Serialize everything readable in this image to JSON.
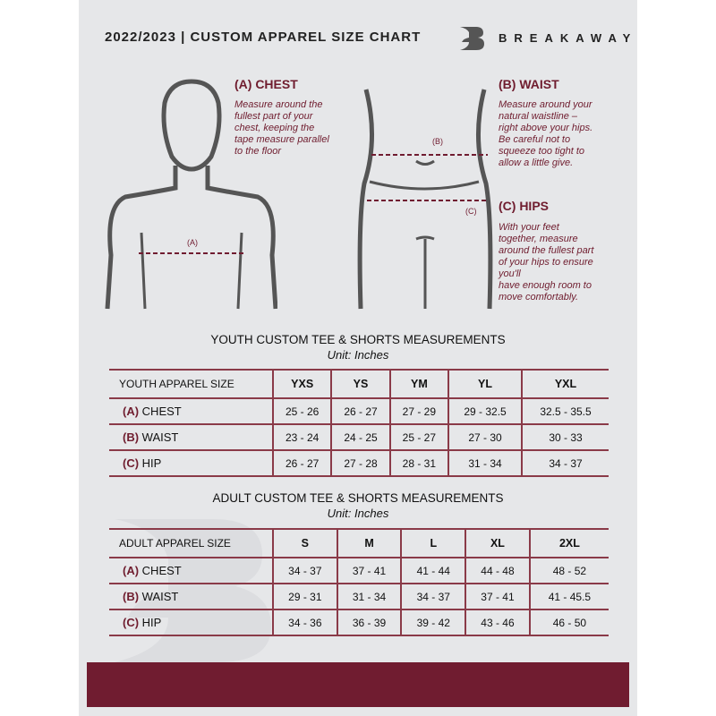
{
  "header": {
    "title": "2022/2023  |  CUSTOM APPAREL SIZE CHART",
    "brand": "BREAKAWAY"
  },
  "guides": {
    "chest": {
      "heading": "(A) CHEST",
      "lines": [
        "Measure around the",
        "fullest part of your",
        "chest, keeping the",
        "tape measure parallel",
        "to the floor"
      ],
      "marker": "(A)"
    },
    "waist": {
      "heading": "(B) WAIST",
      "lines": [
        "Measure around your",
        "natural waistline –",
        "right above your hips.",
        "Be careful not to",
        "squeeze too tight to",
        "allow a little give."
      ],
      "marker": "(B)"
    },
    "hips": {
      "heading": "(C) HIPS",
      "lines": [
        "With your feet",
        "together, measure",
        "around the fullest part",
        "of your hips to ensure",
        "you'll",
        "have enough room to",
        "move comfortably."
      ],
      "marker": "(C)"
    }
  },
  "youth": {
    "title": "YOUTH CUSTOM TEE & SHORTS MEASUREMENTS",
    "unit": "Unit: Inches",
    "size_label": "YOUTH APPAREL SIZE",
    "sizes": [
      "YXS",
      "YS",
      "YM",
      "YL",
      "YXL"
    ],
    "rows": [
      {
        "letter": "(A)",
        "name": "CHEST",
        "values": [
          "25 - 26",
          "26 - 27",
          "27 - 29",
          "29 - 32.5",
          "32.5 - 35.5"
        ]
      },
      {
        "letter": "(B)",
        "name": "WAIST",
        "values": [
          "23 - 24",
          "24 - 25",
          "25 - 27",
          "27 - 30",
          "30 - 33"
        ]
      },
      {
        "letter": "(C)",
        "name": "HIP",
        "values": [
          "26 - 27",
          "27 - 28",
          "28 - 31",
          "31 - 34",
          "34 - 37"
        ]
      }
    ]
  },
  "adult": {
    "title": "ADULT CUSTOM TEE & SHORTS MEASUREMENTS",
    "unit": "Unit: Inches",
    "size_label": "ADULT APPAREL SIZE",
    "sizes": [
      "S",
      "M",
      "L",
      "XL",
      "2XL"
    ],
    "rows": [
      {
        "letter": "(A)",
        "name": "CHEST",
        "values": [
          "34 - 37",
          "37 - 41",
          "41 - 44",
          "44 - 48",
          "48 - 52"
        ]
      },
      {
        "letter": "(B)",
        "name": "WAIST",
        "values": [
          "29 - 31",
          "31 - 34",
          "34 - 37",
          "37 - 41",
          "41 - 45.5"
        ]
      },
      {
        "letter": "(C)",
        "name": "HIP",
        "values": [
          "34 - 36",
          "36 - 39",
          "39 - 42",
          "43 - 46",
          "46 - 50"
        ]
      }
    ]
  },
  "colors": {
    "accent": "#701c30",
    "page": "#e6e7e9"
  }
}
